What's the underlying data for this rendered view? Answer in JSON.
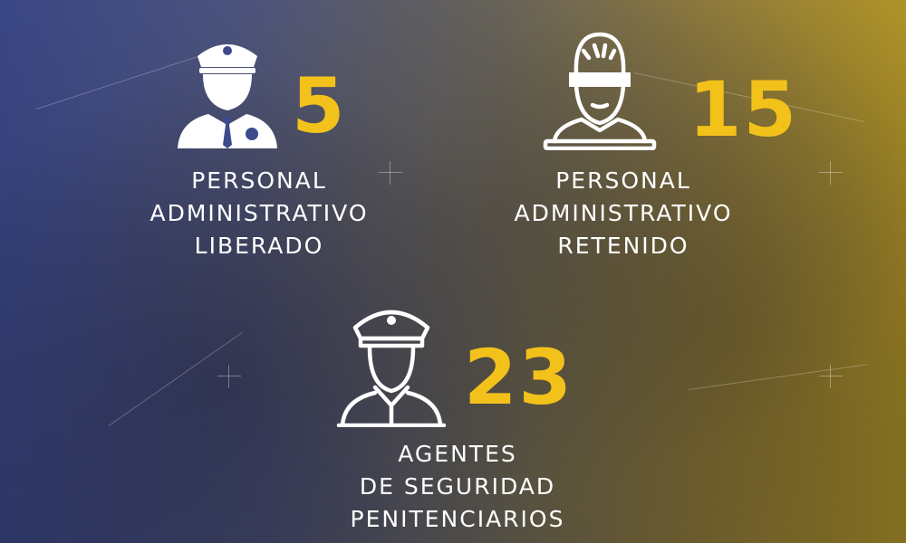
{
  "stats": [
    {
      "icon": "police-officer-icon",
      "value": "5",
      "label_lines": [
        "PERSONAL",
        "ADMINISTRATIVO",
        "LIBERADO"
      ]
    },
    {
      "icon": "blindfolded-person-icon",
      "value": "15",
      "label_lines": [
        "PERSONAL",
        "ADMINISTRATIVO",
        "RETENIDO"
      ]
    },
    {
      "icon": "security-guard-icon",
      "value": "23",
      "label_lines": [
        "AGENTES",
        "DE SEGURIDAD",
        "PENITENCIARIOS"
      ]
    }
  ],
  "colors": {
    "accent": "#f3c21a",
    "text": "#ffffff",
    "bg_left": "#3d4a8c",
    "bg_right": "#b89a2a"
  }
}
